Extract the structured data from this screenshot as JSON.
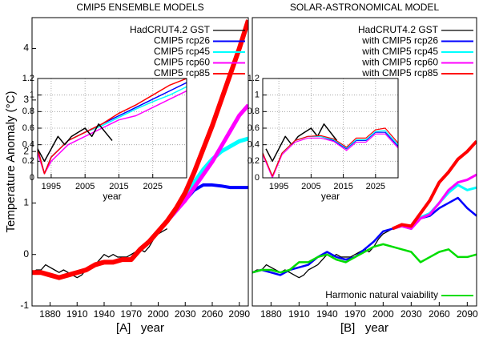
{
  "chart_data": [
    {
      "type": "line",
      "title": "CMIP5 ENSEMBLE MODELS",
      "xlabel": "[A]   year",
      "ylabel": "Temperature Anomaly (°C)",
      "xlim": [
        1860,
        2100
      ],
      "ylim": [
        -1,
        4.6
      ],
      "xticks": [
        1880,
        1910,
        1940,
        1970,
        2000,
        2030,
        2060,
        2090
      ],
      "yticks": [
        -1,
        0,
        1,
        2,
        3,
        4
      ],
      "grid": false,
      "legend": "upper right",
      "series": [
        {
          "name": "HadCRUT4.2 GST",
          "color": "#000000",
          "width": 1.3,
          "x": [
            1860,
            1865,
            1870,
            1875,
            1880,
            1885,
            1890,
            1895,
            1900,
            1905,
            1910,
            1915,
            1920,
            1925,
            1930,
            1935,
            1940,
            1945,
            1950,
            1955,
            1960,
            1965,
            1970,
            1975,
            1980,
            1985,
            1990,
            1995,
            2000,
            2005,
            2010
          ],
          "values": [
            -0.35,
            -0.3,
            -0.3,
            -0.2,
            -0.25,
            -0.3,
            -0.35,
            -0.3,
            -0.35,
            -0.4,
            -0.45,
            -0.4,
            -0.3,
            -0.25,
            -0.2,
            -0.1,
            0.0,
            -0.05,
            0.0,
            -0.05,
            -0.05,
            -0.05,
            0.0,
            0.05,
            0.1,
            0.05,
            0.15,
            0.3,
            0.4,
            0.45,
            0.5
          ]
        },
        {
          "name": "CMIP5 rcp26",
          "color": "#0000ff",
          "width": 4,
          "x": [
            1860,
            1870,
            1880,
            1890,
            1900,
            1910,
            1920,
            1930,
            1940,
            1950,
            1960,
            1970,
            1980,
            1990,
            2000,
            2010,
            2020,
            2030,
            2040,
            2050,
            2060,
            2070,
            2080,
            2090,
            2100
          ],
          "values": [
            -0.35,
            -0.35,
            -0.4,
            -0.45,
            -0.4,
            -0.35,
            -0.3,
            -0.2,
            -0.15,
            -0.15,
            -0.1,
            -0.1,
            0.1,
            0.25,
            0.45,
            0.65,
            0.85,
            1.05,
            1.25,
            1.35,
            1.35,
            1.33,
            1.3,
            1.3,
            1.3
          ]
        },
        {
          "name": "CMIP5 rcp45",
          "color": "#00ffff",
          "width": 5,
          "x": [
            2010,
            2020,
            2030,
            2040,
            2050,
            2060,
            2070,
            2080,
            2090,
            2100
          ],
          "values": [
            0.65,
            0.85,
            1.1,
            1.4,
            1.65,
            1.85,
            2.0,
            2.1,
            2.2,
            2.25
          ]
        },
        {
          "name": "CMIP5 rcp60",
          "color": "#ff00ff",
          "width": 5,
          "x": [
            2010,
            2020,
            2030,
            2040,
            2050,
            2060,
            2070,
            2080,
            2090,
            2100
          ],
          "values": [
            0.65,
            0.85,
            1.05,
            1.3,
            1.55,
            1.8,
            2.1,
            2.4,
            2.7,
            2.9
          ]
        },
        {
          "name": "CMIP5 rcp85",
          "color": "#ff0000",
          "width": 6,
          "x": [
            1860,
            1870,
            1880,
            1890,
            1900,
            1910,
            1920,
            1930,
            1940,
            1950,
            1960,
            1970,
            1980,
            1990,
            2000,
            2010,
            2020,
            2030,
            2040,
            2050,
            2060,
            2070,
            2080,
            2090,
            2100
          ],
          "values": [
            -0.35,
            -0.35,
            -0.4,
            -0.45,
            -0.4,
            -0.35,
            -0.3,
            -0.2,
            -0.15,
            -0.15,
            -0.1,
            -0.1,
            0.1,
            0.25,
            0.45,
            0.65,
            0.9,
            1.2,
            1.6,
            2.05,
            2.5,
            3.0,
            3.5,
            4.0,
            4.55
          ]
        }
      ]
    },
    {
      "type": "line",
      "xlabel": "year",
      "xlim": [
        1991,
        2035
      ],
      "ylim": [
        0,
        1.2
      ],
      "xticks": [
        1995,
        2005,
        2015,
        2025
      ],
      "yticks": [
        0,
        0.2,
        0.4,
        0.6,
        0.8,
        1,
        1.2
      ],
      "grid": true,
      "series": [
        {
          "color": "#0000ff",
          "width": 1.5,
          "x": [
            1991,
            1993,
            1995,
            2000,
            2005,
            2010,
            2015,
            2020,
            2025,
            2030,
            2035
          ],
          "values": [
            0.35,
            0.05,
            0.25,
            0.45,
            0.55,
            0.65,
            0.75,
            0.85,
            0.95,
            1.05,
            1.15
          ]
        },
        {
          "color": "#00ffff",
          "width": 1.5,
          "x": [
            1991,
            1993,
            1995,
            2000,
            2005,
            2010,
            2015,
            2020,
            2025,
            2030,
            2035
          ],
          "values": [
            0.35,
            0.05,
            0.25,
            0.45,
            0.55,
            0.63,
            0.73,
            0.83,
            0.92,
            1.0,
            1.1
          ]
        },
        {
          "color": "#ff00ff",
          "width": 1.5,
          "x": [
            1991,
            1993,
            1995,
            2000,
            2005,
            2010,
            2015,
            2020,
            2025,
            2030,
            2035
          ],
          "values": [
            0.3,
            0.05,
            0.2,
            0.4,
            0.5,
            0.6,
            0.7,
            0.75,
            0.85,
            0.95,
            1.05
          ]
        },
        {
          "color": "#ff0000",
          "width": 1.5,
          "x": [
            1991,
            1993,
            1995,
            2000,
            2005,
            2010,
            2015,
            2020,
            2025,
            2030,
            2035
          ],
          "values": [
            0.35,
            0.05,
            0.25,
            0.45,
            0.55,
            0.65,
            0.78,
            0.88,
            1.0,
            1.12,
            1.2
          ]
        },
        {
          "color": "#000000",
          "width": 1.5,
          "x": [
            1991,
            1993,
            1995,
            1997,
            1999,
            2001,
            2003,
            2005,
            2007,
            2009,
            2011,
            2013
          ],
          "values": [
            0.35,
            0.2,
            0.35,
            0.5,
            0.4,
            0.5,
            0.55,
            0.6,
            0.5,
            0.65,
            0.55,
            0.45
          ]
        }
      ]
    },
    {
      "type": "line",
      "title": "SOLAR-ASTRONOMICAL MODEL",
      "xlabel": "[B]   year",
      "xlim": [
        1860,
        2100
      ],
      "ylim": [
        -1,
        4.6
      ],
      "xticks": [
        1880,
        1910,
        1940,
        1970,
        2000,
        2030,
        2060,
        2090
      ],
      "grid": false,
      "legend": "upper right",
      "series": [
        {
          "name": "HadCRUT4.2 GST",
          "color": "#000000",
          "width": 1.3,
          "x": [
            1860,
            1865,
            1870,
            1875,
            1880,
            1885,
            1890,
            1895,
            1900,
            1905,
            1910,
            1915,
            1920,
            1925,
            1930,
            1935,
            1940,
            1945,
            1950,
            1955,
            1960,
            1965,
            1970,
            1975,
            1980,
            1985,
            1990,
            1995,
            2000,
            2005,
            2010
          ],
          "values": [
            -0.35,
            -0.3,
            -0.3,
            -0.2,
            -0.25,
            -0.3,
            -0.35,
            -0.3,
            -0.35,
            -0.4,
            -0.45,
            -0.4,
            -0.3,
            -0.25,
            -0.2,
            -0.1,
            0.0,
            -0.05,
            0.0,
            -0.05,
            -0.05,
            -0.05,
            0.0,
            0.05,
            0.1,
            0.05,
            0.15,
            0.3,
            0.4,
            0.45,
            0.5
          ]
        },
        {
          "name": "with CMIP5 rcp26",
          "color": "#0000ff",
          "width": 2.5,
          "x": [
            1860,
            1870,
            1880,
            1890,
            1900,
            1910,
            1920,
            1930,
            1940,
            1950,
            1960,
            1970,
            1980,
            1990,
            2000,
            2010,
            2020,
            2030,
            2040,
            2050,
            2060,
            2070,
            2080,
            2090,
            2100
          ],
          "values": [
            -0.35,
            -0.3,
            -0.35,
            -0.4,
            -0.3,
            -0.25,
            -0.2,
            -0.05,
            0.05,
            -0.05,
            -0.1,
            -0.05,
            0.1,
            0.25,
            0.45,
            0.5,
            0.55,
            0.5,
            0.7,
            0.75,
            0.9,
            1.0,
            1.1,
            0.9,
            0.75
          ]
        },
        {
          "name": "with CMIP5 rcp45",
          "color": "#00ffff",
          "width": 3,
          "x": [
            2010,
            2020,
            2030,
            2040,
            2050,
            2060,
            2070,
            2080,
            2090,
            2100
          ],
          "values": [
            0.5,
            0.55,
            0.5,
            0.72,
            0.8,
            1.0,
            1.2,
            1.35,
            1.25,
            1.3
          ]
        },
        {
          "name": "with CMIP5 rcp60",
          "color": "#ff00ff",
          "width": 3,
          "x": [
            2010,
            2020,
            2030,
            2040,
            2050,
            2060,
            2070,
            2080,
            2090,
            2100
          ],
          "values": [
            0.5,
            0.55,
            0.5,
            0.7,
            0.78,
            1.0,
            1.25,
            1.4,
            1.45,
            1.55
          ]
        },
        {
          "name": "with CMIP5 rcp85",
          "color": "#ff0000",
          "width": 4,
          "x": [
            2010,
            2020,
            2030,
            2040,
            2050,
            2060,
            2070,
            2080,
            2090,
            2100
          ],
          "values": [
            0.5,
            0.58,
            0.55,
            0.8,
            1.05,
            1.4,
            1.6,
            1.85,
            2.0,
            2.2
          ]
        },
        {
          "name": "Harmonic natural vaiability",
          "color": "#00dd00",
          "width": 2.5,
          "legend": "lower right",
          "x": [
            1860,
            1870,
            1880,
            1890,
            1900,
            1910,
            1920,
            1930,
            1940,
            1950,
            1960,
            1970,
            1980,
            1990,
            2000,
            2010,
            2020,
            2030,
            2040,
            2050,
            2060,
            2070,
            2080,
            2090,
            2100
          ],
          "values": [
            -0.35,
            -0.3,
            -0.3,
            -0.35,
            -0.3,
            -0.15,
            -0.15,
            -0.05,
            0.0,
            -0.1,
            -0.15,
            -0.05,
            0.05,
            0.15,
            0.2,
            0.15,
            0.1,
            0.05,
            -0.15,
            -0.05,
            0.05,
            0.1,
            -0.05,
            -0.05,
            0.0
          ]
        }
      ]
    },
    {
      "type": "line",
      "xlabel": "year",
      "xlim": [
        1990,
        2032
      ],
      "ylim": [
        0,
        1.2
      ],
      "xticks": [
        1995,
        2005,
        2015,
        2025
      ],
      "yticks": [
        0,
        0.2,
        0.4,
        0.6,
        0.8,
        1,
        1.2
      ],
      "grid": true,
      "series": [
        {
          "color": "#000000",
          "width": 1.5,
          "x": [
            1991,
            1993,
            1995,
            1997,
            1999,
            2001,
            2003,
            2005,
            2007,
            2009,
            2011,
            2013
          ],
          "values": [
            0.35,
            0.2,
            0.35,
            0.5,
            0.4,
            0.5,
            0.55,
            0.6,
            0.5,
            0.65,
            0.55,
            0.45
          ]
        },
        {
          "color": "#0000ff",
          "width": 1.2,
          "x": [
            1990,
            1993,
            1996,
            2000,
            2004,
            2008,
            2012,
            2016,
            2019,
            2022,
            2025,
            2028,
            2032
          ],
          "values": [
            0.3,
            0.02,
            0.3,
            0.45,
            0.5,
            0.5,
            0.45,
            0.35,
            0.45,
            0.45,
            0.55,
            0.55,
            0.38
          ]
        },
        {
          "color": "#00ffff",
          "width": 1.2,
          "x": [
            1990,
            1993,
            1996,
            2000,
            2004,
            2008,
            2012,
            2016,
            2019,
            2022,
            2025,
            2028,
            2032
          ],
          "values": [
            0.3,
            0.02,
            0.3,
            0.45,
            0.5,
            0.5,
            0.46,
            0.36,
            0.46,
            0.46,
            0.56,
            0.57,
            0.4
          ]
        },
        {
          "color": "#ff00ff",
          "width": 1.2,
          "x": [
            1990,
            1993,
            1996,
            2000,
            2004,
            2008,
            2012,
            2016,
            2019,
            2022,
            2025,
            2028,
            2032
          ],
          "values": [
            0.28,
            0.0,
            0.28,
            0.43,
            0.48,
            0.48,
            0.44,
            0.33,
            0.43,
            0.43,
            0.53,
            0.53,
            0.36
          ]
        },
        {
          "color": "#ff0000",
          "width": 1.2,
          "x": [
            1990,
            1993,
            1996,
            2000,
            2004,
            2008,
            2012,
            2016,
            2019,
            2022,
            2025,
            2028,
            2032
          ],
          "values": [
            0.3,
            0.02,
            0.3,
            0.45,
            0.5,
            0.51,
            0.47,
            0.37,
            0.48,
            0.48,
            0.58,
            0.6,
            0.42
          ]
        }
      ]
    }
  ]
}
